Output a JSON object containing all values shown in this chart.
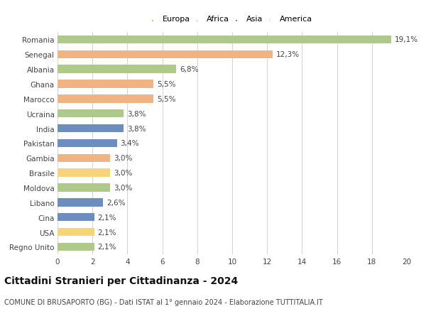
{
  "countries": [
    "Romania",
    "Senegal",
    "Albania",
    "Ghana",
    "Marocco",
    "Ucraina",
    "India",
    "Pakistan",
    "Gambia",
    "Brasile",
    "Moldova",
    "Libano",
    "Cina",
    "USA",
    "Regno Unito"
  ],
  "values": [
    19.1,
    12.3,
    6.8,
    5.5,
    5.5,
    3.8,
    3.8,
    3.4,
    3.0,
    3.0,
    3.0,
    2.6,
    2.1,
    2.1,
    2.1
  ],
  "labels": [
    "19,1%",
    "12,3%",
    "6,8%",
    "5,5%",
    "5,5%",
    "3,8%",
    "3,8%",
    "3,4%",
    "3,0%",
    "3,0%",
    "3,0%",
    "2,6%",
    "2,1%",
    "2,1%",
    "2,1%"
  ],
  "colors": [
    "#aec98a",
    "#f0b482",
    "#aec98a",
    "#f0b482",
    "#f0b482",
    "#aec98a",
    "#6b8ebf",
    "#6b8ebf",
    "#f0b482",
    "#f5d57a",
    "#aec98a",
    "#6b8ebf",
    "#6b8ebf",
    "#f5d57a",
    "#aec98a"
  ],
  "legend_labels": [
    "Europa",
    "Africa",
    "Asia",
    "America"
  ],
  "legend_colors": [
    "#aec98a",
    "#f0b482",
    "#6b8ebf",
    "#f5d57a"
  ],
  "title": "Cittadini Stranieri per Cittadinanza - 2024",
  "subtitle": "COMUNE DI BRUSAPORTO (BG) - Dati ISTAT al 1° gennaio 2024 - Elaborazione TUTTITALIA.IT",
  "xlim": [
    0,
    20
  ],
  "xticks": [
    0,
    2,
    4,
    6,
    8,
    10,
    12,
    14,
    16,
    18,
    20
  ],
  "background_color": "#ffffff",
  "grid_color": "#cccccc",
  "bar_height": 0.55,
  "label_fontsize": 7.5,
  "tick_fontsize": 7.5,
  "title_fontsize": 10,
  "subtitle_fontsize": 7
}
